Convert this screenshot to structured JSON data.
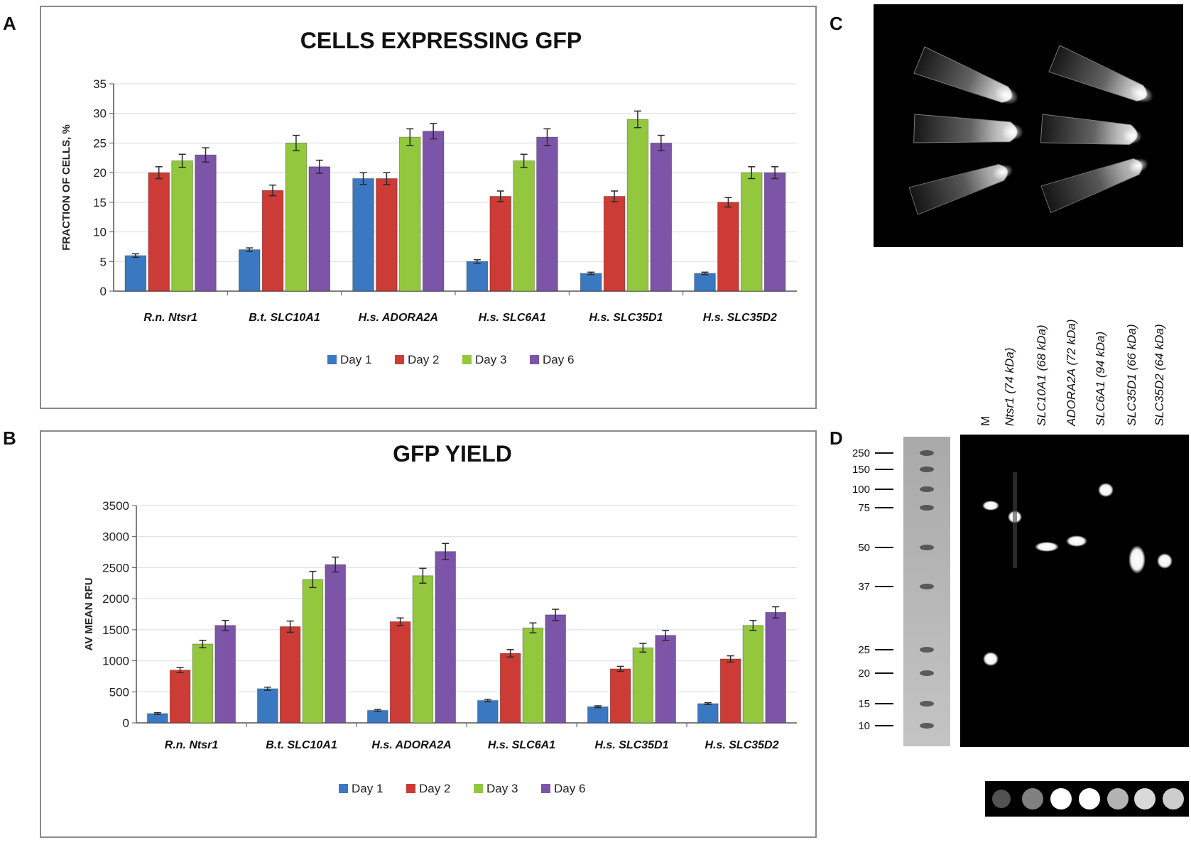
{
  "panel_labels": {
    "a": "A",
    "b": "B",
    "c": "C",
    "d": "D"
  },
  "colors": {
    "day1": "#3b78c2",
    "day2": "#cc3b35",
    "day3": "#93c83e",
    "day6": "#7d55a8",
    "grid": "#d9d9e6",
    "axis": "#555555",
    "errbar": "#2a2a2a"
  },
  "chart_data": [
    {
      "type": "bar",
      "title": "CELLS EXPRESSING GFP",
      "xlabel": "",
      "ylabel": "FRACTION OF CELLS, %",
      "ylim": [
        0,
        35
      ],
      "yticks": [
        0,
        5,
        10,
        15,
        20,
        25,
        30,
        35
      ],
      "grid": true,
      "categories": [
        "R.n. Ntsr1",
        "B.t. SLC10A1",
        "H.s. ADORA2A",
        "H.s. SLC6A1",
        "H.s. SLC35D1",
        "H.s. SLC35D2"
      ],
      "series": [
        {
          "name": "Day 1",
          "values": [
            6,
            7,
            19,
            5,
            3,
            3
          ],
          "errors": [
            0.3,
            0.3,
            1.0,
            0.3,
            0.2,
            0.2
          ]
        },
        {
          "name": "Day 2",
          "values": [
            20,
            17,
            19,
            16,
            16,
            15
          ],
          "errors": [
            1.0,
            0.9,
            1.0,
            0.9,
            0.9,
            0.8
          ]
        },
        {
          "name": "Day 3",
          "values": [
            22,
            25,
            26,
            22,
            29,
            20
          ],
          "errors": [
            1.1,
            1.3,
            1.4,
            1.1,
            1.4,
            1.0
          ]
        },
        {
          "name": "Day 6",
          "values": [
            23,
            21,
            27,
            26,
            25,
            20
          ],
          "errors": [
            1.2,
            1.1,
            1.3,
            1.4,
            1.3,
            1.0
          ]
        }
      ],
      "legend": "bottom"
    },
    {
      "type": "bar",
      "title": "GFP YIELD",
      "xlabel": "",
      "ylabel": "AV MEAN RFU",
      "ylim": [
        0,
        3500
      ],
      "yticks": [
        0,
        500,
        1000,
        1500,
        2000,
        2500,
        3000,
        3500
      ],
      "grid": true,
      "categories": [
        "R.n. Ntsr1",
        "B.t. SLC10A1",
        "H.s. ADORA2A",
        "H.s. SLC6A1",
        "H.s. SLC35D1",
        "H.s. SLC35D2"
      ],
      "series": [
        {
          "name": "Day 1",
          "values": [
            150,
            550,
            200,
            360,
            260,
            310
          ],
          "errors": [
            15,
            25,
            15,
            20,
            15,
            15
          ]
        },
        {
          "name": "Day 2",
          "values": [
            850,
            1550,
            1630,
            1120,
            870,
            1030
          ],
          "errors": [
            40,
            90,
            60,
            60,
            40,
            50
          ]
        },
        {
          "name": "Day 3",
          "values": [
            1270,
            2310,
            2370,
            1530,
            1210,
            1570
          ],
          "errors": [
            60,
            130,
            120,
            80,
            70,
            80
          ]
        },
        {
          "name": "Day 6",
          "values": [
            1570,
            2550,
            2760,
            1740,
            1410,
            1780
          ],
          "errors": [
            80,
            120,
            130,
            90,
            80,
            90
          ]
        }
      ],
      "legend": "bottom"
    }
  ],
  "gel": {
    "marker_ladder_kda": [
      "250",
      "150",
      "100",
      "75",
      "50",
      "37",
      "25",
      "20",
      "15",
      "10"
    ],
    "lanes": [
      "M",
      "Ntsr1 (74 kDa)",
      "SLC10A1 (68 kDa)",
      "ADORA2A (72 kDa)",
      "SLC6A1 (94 kDa)",
      "SLC35D1 (66 kDa)",
      "SLC35D2 (64 kDa)"
    ]
  }
}
